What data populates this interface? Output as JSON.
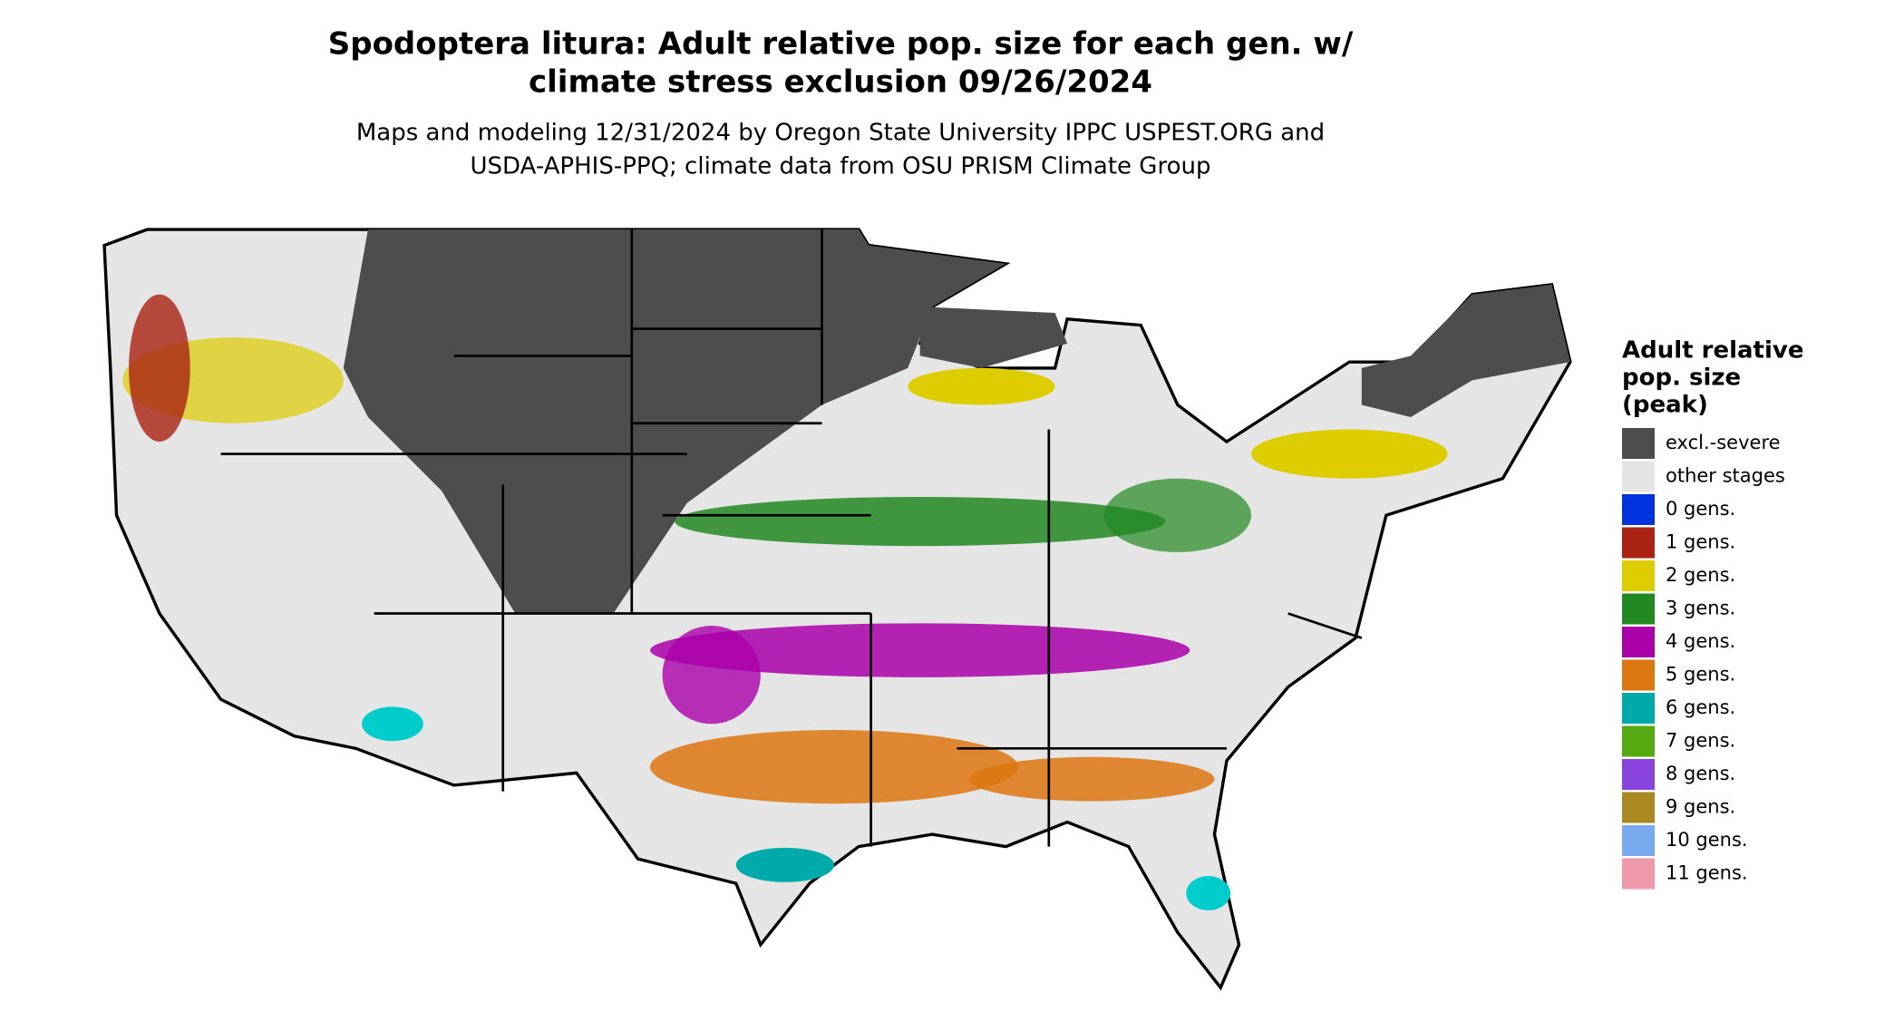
{
  "title": [
    "Spodoptera litura: Adult relative pop. size for each gen. w/",
    "climate stress exclusion 09/26/2024"
  ],
  "subtitle": [
    "Maps and modeling 12/31/2024 by Oregon State University IPPC USPEST.ORG and",
    "USDA-APHIS-PPQ; climate data from OSU PRISM Climate Group"
  ],
  "legend": {
    "title": [
      "Adult relative",
      "pop. size",
      "(peak)"
    ],
    "items": [
      {
        "label": "excl.-severe",
        "color": "#4d4d4d"
      },
      {
        "label": "other stages",
        "color": "#e5e5e5"
      },
      {
        "label": "0 gens.",
        "color": "#0033dd"
      },
      {
        "label": "1 gens.",
        "color": "#aa2211"
      },
      {
        "label": "2 gens.",
        "color": "#ddcc00"
      },
      {
        "label": "3 gens.",
        "color": "#228822"
      },
      {
        "label": "4 gens.",
        "color": "#aa00aa"
      },
      {
        "label": "5 gens.",
        "color": "#dd7711"
      },
      {
        "label": "6 gens.",
        "color": "#00aaaa"
      },
      {
        "label": "7 gens.",
        "color": "#55aa11"
      },
      {
        "label": "8 gens.",
        "color": "#8844dd"
      },
      {
        "label": "9 gens.",
        "color": "#aa8822"
      },
      {
        "label": "10 gens.",
        "color": "#77aaee"
      },
      {
        "label": "11 gens.",
        "color": "#ee99aa"
      }
    ]
  }
}
